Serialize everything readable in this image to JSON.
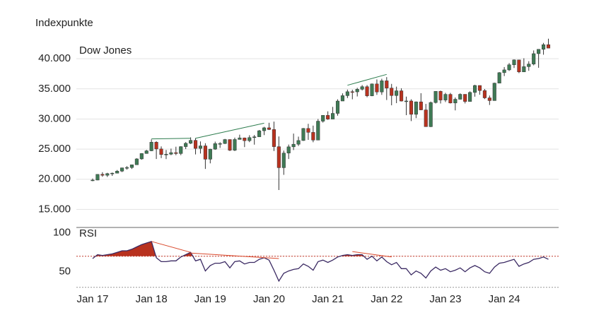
{
  "chart_data": [
    {
      "type": "candlestick",
      "title": "Indexpunkte",
      "label": "Dow Jones",
      "ylim": [
        12000,
        43300
      ],
      "yticks": [
        {
          "value": 15000,
          "label": "15.000"
        },
        {
          "value": 20000,
          "label": "20.000"
        },
        {
          "value": 25000,
          "label": "25.000"
        },
        {
          "value": 30000,
          "label": "30.000"
        },
        {
          "value": 35000,
          "label": "35.000"
        },
        {
          "value": 40000,
          "label": "40.000"
        }
      ],
      "grid": true,
      "up_color": "#3f7a55",
      "down_color": "#b8321f",
      "wick_color": "#333333",
      "open": [
        19763,
        19864,
        20812,
        20663,
        20941,
        21009,
        21350,
        21891,
        21948,
        22405,
        23377,
        24272,
        24719,
        26149,
        25029,
        24103,
        24163,
        24416,
        24271,
        25415,
        25965,
        26458,
        25116,
        25538,
        23327,
        24999,
        25916,
        25929,
        26593,
        24815,
        26600,
        26864,
        26403,
        26917,
        27046,
        28051,
        28538,
        28256,
        25409,
        21917,
        24346,
        25383,
        25813,
        26428,
        28430,
        27782,
        26502,
        29638,
        30606,
        29983,
        30932,
        32982,
        33875,
        34529,
        34503,
        34935,
        35361,
        33844,
        35820,
        34484,
        36338,
        35132,
        33893,
        34678,
        32977,
        32990,
        30775,
        32845,
        31510,
        28726,
        32733,
        34590,
        33147,
        34086,
        32657,
        33274,
        34098,
        32908,
        34408,
        35560,
        34722,
        33508,
        33053,
        35951,
        37690,
        38150,
        38996,
        39807,
        37816,
        38686,
        39119,
        40843,
        41563,
        42330
      ],
      "high": [
        20125,
        20851,
        21169,
        21070,
        21113,
        21535,
        21925,
        22179,
        22420,
        23485,
        24327,
        24876,
        26617,
        26307,
        25450,
        24858,
        25087,
        25402,
        25479,
        26168,
        26951,
        26828,
        26278,
        25980,
        25057,
        26242,
        26156,
        26696,
        26620,
        26907,
        27399,
        26916,
        27307,
        27347,
        28175,
        28702,
        29373,
        29568,
        27102,
        24765,
        25758,
        27580,
        27071,
        28502,
        29199,
        28903,
        30000,
        30637,
        31272,
        32009,
        33259,
        34257,
        34880,
        34849,
        35172,
        35632,
        35631,
        35892,
        36566,
        36679,
        36953,
        35824,
        35372,
        35093,
        33715,
        33272,
        32910,
        34281,
        32504,
        32893,
        34595,
        34712,
        34342,
        34335,
        33572,
        34257,
        34104,
        34588,
        35679,
        35578,
        34977,
        33893,
        36025,
        37778,
        38621,
        39282,
        39889,
        39808,
        40077,
        39585,
        41376,
        41585,
        42628,
        43325
      ],
      "low": [
        19677,
        19831,
        20413,
        20379,
        20553,
        20996,
        21197,
        21600,
        21709,
        22416,
        23242,
        24242,
        24660,
        23360,
        23509,
        23345,
        23997,
        23997,
        23997,
        25011,
        25844,
        24123,
        24268,
        21713,
        22639,
        24884,
        25208,
        25850,
        24680,
        24680,
        26600,
        25339,
        26155,
        25743,
        27046,
        27325,
        28170,
        24681,
        18214,
        20735,
        23361,
        24843,
        25524,
        26366,
        26537,
        26143,
        26502,
        29402,
        29857,
        29983,
        30548,
        32982,
        33474,
        33271,
        33742,
        34734,
        33613,
        33785,
        34006,
        34007,
        33150,
        32272,
        32632,
        32914,
        30636,
        29653,
        30144,
        31470,
        28716,
        28661,
        32574,
        32573,
        32813,
        32574,
        31430,
        33235,
        32586,
        32988,
        33706,
        34029,
        33306,
        32327,
        33053,
        35951,
        37122,
        37973,
        38465,
        37612,
        37816,
        38000,
        38904,
        38500,
        40671,
        41763
      ],
      "close": [
        19864,
        20812,
        20663,
        20941,
        21009,
        21350,
        21891,
        21948,
        22405,
        23377,
        24272,
        24719,
        26149,
        25029,
        24103,
        24163,
        24416,
        24271,
        25415,
        25965,
        26458,
        25116,
        25538,
        23327,
        24999,
        25916,
        25929,
        26593,
        24815,
        26600,
        26864,
        26403,
        26917,
        27046,
        28051,
        28538,
        28256,
        25409,
        21917,
        24346,
        25383,
        25813,
        26428,
        28430,
        27782,
        26502,
        29638,
        30606,
        29983,
        30932,
        32982,
        33875,
        34529,
        34503,
        34935,
        35361,
        33844,
        35820,
        34484,
        36338,
        35132,
        33893,
        34678,
        32977,
        32990,
        30775,
        32845,
        31510,
        28726,
        32733,
        34590,
        33147,
        34086,
        32657,
        33274,
        34098,
        32908,
        34408,
        35560,
        34722,
        33508,
        33053,
        35951,
        37690,
        38150,
        38996,
        39807,
        37816,
        38686,
        39119,
        40843,
        41563,
        42330,
        41763
      ],
      "trendlines": [
        {
          "from": 12,
          "to": 20,
          "values": [
            26700,
            26800
          ],
          "color": "#2e7d4f"
        },
        {
          "from": 21,
          "to": 35,
          "values": [
            26800,
            29300
          ],
          "color": "#2e7d4f"
        },
        {
          "from": 52,
          "to": 60,
          "values": [
            35600,
            37400
          ],
          "color": "#2e7d4f"
        }
      ]
    },
    {
      "type": "line",
      "label": "RSI",
      "categories": [
        "Jan 17",
        null,
        null,
        null,
        null,
        null,
        null,
        null,
        null,
        null,
        null,
        null,
        "Jan 18",
        null,
        null,
        null,
        null,
        null,
        null,
        null,
        null,
        null,
        null,
        null,
        "Jan 19",
        null,
        null,
        null,
        null,
        null,
        null,
        null,
        null,
        null,
        null,
        null,
        "Jan 20",
        null,
        null,
        null,
        null,
        null,
        null,
        null,
        null,
        null,
        null,
        null,
        "Jan 21",
        null,
        null,
        null,
        null,
        null,
        null,
        null,
        null,
        null,
        null,
        null,
        "Jan 22",
        null,
        null,
        null,
        null,
        null,
        null,
        null,
        null,
        null,
        null,
        null,
        "Jan 23",
        null,
        null,
        null,
        null,
        null,
        null,
        null,
        null,
        null,
        null,
        null,
        "Jan 24",
        null,
        null,
        null,
        null,
        null,
        null,
        null,
        null,
        null
      ],
      "series": [
        {
          "name": "RSI",
          "color": "#3b2a63",
          "values": [
            67,
            72,
            71,
            72,
            73,
            75,
            77,
            77,
            79,
            82,
            85,
            87,
            89,
            68,
            63,
            63,
            64,
            64,
            69,
            72,
            75,
            64,
            66,
            51,
            58,
            61,
            61,
            63,
            55,
            63,
            64,
            60,
            62,
            62,
            66,
            68,
            65,
            52,
            38,
            48,
            51,
            53,
            54,
            60,
            57,
            52,
            63,
            65,
            62,
            65,
            69,
            71,
            72,
            71,
            72,
            72,
            66,
            70,
            64,
            69,
            63,
            59,
            62,
            54,
            54,
            46,
            51,
            48,
            42,
            51,
            56,
            52,
            54,
            50,
            52,
            55,
            50,
            55,
            58,
            55,
            50,
            48,
            56,
            61,
            62,
            64,
            66,
            57,
            60,
            62,
            66,
            67,
            69,
            66
          ]
        }
      ],
      "ylim": [
        27,
        107
      ],
      "yticks": [
        50,
        100
      ],
      "levels": [
        {
          "value": 70,
          "color": "#c0392b"
        },
        {
          "value": 30,
          "color": "#999999"
        }
      ],
      "fill_color": "#b8321f",
      "trendlines": [
        {
          "from": 12,
          "to": 20,
          "values": [
            89,
            75
          ],
          "color": "#d9482b"
        },
        {
          "from": 20,
          "to": 38,
          "values": [
            74,
            67
          ],
          "color": "#d9482b"
        },
        {
          "from": 53,
          "to": 61,
          "values": [
            76,
            69
          ],
          "color": "#d9482b"
        }
      ]
    }
  ]
}
